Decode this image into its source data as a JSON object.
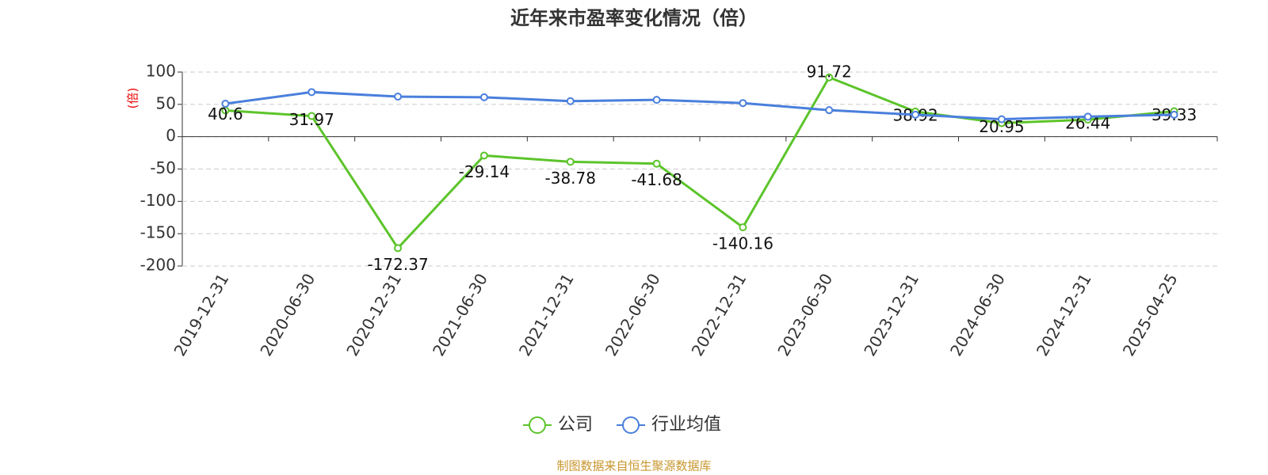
{
  "chart_data": {
    "type": "line",
    "title": "近年来市盈率变化情况（倍）",
    "y_label": "(倍)",
    "source": "制图数据来自恒生聚源数据库",
    "categories": [
      "2019-12-31",
      "2020-06-30",
      "2020-12-31",
      "2021-06-30",
      "2021-12-31",
      "2022-06-30",
      "2022-12-31",
      "2023-06-30",
      "2023-12-31",
      "2024-06-30",
      "2024-12-31",
      "2025-04-25"
    ],
    "series": [
      {
        "name": "公司",
        "color": "#5cc42b",
        "values": [
          40.6,
          31.97,
          -172.37,
          -29.14,
          -38.78,
          -41.68,
          -140.16,
          91.72,
          38.92,
          20.95,
          26.44,
          39.33
        ],
        "labels": true
      },
      {
        "name": "行业均值",
        "color": "#4a7fdc",
        "values": [
          51,
          69,
          62,
          61,
          55,
          57,
          52,
          41,
          34,
          27,
          31,
          34
        ],
        "labels": false
      }
    ],
    "ylim": [
      -200,
      100
    ],
    "yticks": [
      -200,
      -150,
      -100,
      -50,
      0,
      50,
      100
    ],
    "grid": true
  }
}
